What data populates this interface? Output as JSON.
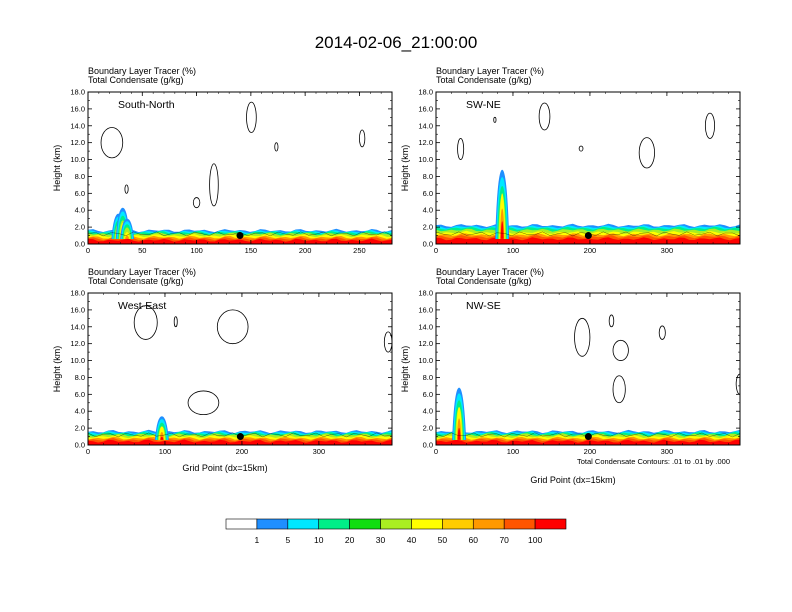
{
  "title": "2014-02-06_21:00:00",
  "subtitle_line1": "Boundary Layer Tracer   (%)",
  "subtitle_line2": "Total Condensate   (g/kg)",
  "ylabel": "Height (km)",
  "xlabel": "Grid Point (dx=15km)",
  "contour_note": "Total Condensate Contours: .01 to .01 by .000",
  "colors": {
    "background": "#ffffff",
    "contour": "#000000"
  },
  "chart_data": [
    {
      "type": "heatmap",
      "label": "South-North",
      "xlim": [
        0,
        280
      ],
      "ylim": [
        0,
        18
      ],
      "xticks": [
        "0",
        "50",
        "100",
        "150",
        "200",
        "250"
      ],
      "yticks": [
        "0.0",
        "2.0",
        "4.0",
        "6.0",
        "8.0",
        "10.0",
        "12.0",
        "14.0",
        "16.0",
        "18.0"
      ],
      "marker": {
        "x": 140,
        "y": 1.0
      },
      "plume": [
        {
          "x": 28,
          "top": 3.6,
          "core": 2.0
        },
        {
          "x": 32,
          "top": 4.3,
          "core": 2.5
        },
        {
          "x": 36,
          "top": 3.0,
          "core": 1.4
        }
      ],
      "base_top": 1.6,
      "cloud_contours": [
        {
          "x": 12,
          "y": 10.2,
          "w": 20,
          "h": 3.6
        },
        {
          "x": 34,
          "y": 6.0,
          "w": 3,
          "h": 1.0
        },
        {
          "x": 97,
          "y": 4.3,
          "w": 6,
          "h": 1.2
        },
        {
          "x": 112,
          "y": 4.5,
          "w": 8,
          "h": 5.0
        },
        {
          "x": 146,
          "y": 13.2,
          "w": 9,
          "h": 3.6
        },
        {
          "x": 172,
          "y": 11.0,
          "w": 3,
          "h": 1.0
        },
        {
          "x": 250,
          "y": 11.5,
          "w": 5,
          "h": 2.0
        }
      ]
    },
    {
      "type": "heatmap",
      "label": "SW-NE",
      "xlim": [
        0,
        395
      ],
      "ylim": [
        0,
        18
      ],
      "xticks": [
        "0",
        "100",
        "200",
        "300"
      ],
      "yticks": [
        "0.0",
        "2.0",
        "4.0",
        "6.0",
        "8.0",
        "10.0",
        "12.0",
        "14.0",
        "16.0",
        "18.0"
      ],
      "marker": {
        "x": 198,
        "y": 1.0
      },
      "plume": [
        {
          "x": 86,
          "top": 8.8,
          "core": 6.0
        }
      ],
      "base_top": 2.2,
      "cloud_contours": [
        {
          "x": 28,
          "y": 10.0,
          "w": 8,
          "h": 2.5
        },
        {
          "x": 75,
          "y": 14.4,
          "w": 3,
          "h": 0.6
        },
        {
          "x": 134,
          "y": 13.5,
          "w": 14,
          "h": 3.2
        },
        {
          "x": 186,
          "y": 11.0,
          "w": 5,
          "h": 0.6
        },
        {
          "x": 264,
          "y": 9.0,
          "w": 20,
          "h": 3.6
        },
        {
          "x": 350,
          "y": 12.5,
          "w": 12,
          "h": 3.0
        }
      ]
    },
    {
      "type": "heatmap",
      "label": "West-East",
      "xlim": [
        0,
        395
      ],
      "ylim": [
        0,
        18
      ],
      "xticks": [
        "0",
        "100",
        "200",
        "300"
      ],
      "yticks": [
        "0.0",
        "2.0",
        "4.0",
        "6.0",
        "8.0",
        "10.0",
        "12.0",
        "14.0",
        "16.0",
        "18.0"
      ],
      "marker": {
        "x": 198,
        "y": 1.0
      },
      "plume": [
        {
          "x": 96,
          "top": 3.4,
          "core": 2.2
        }
      ],
      "base_top": 1.6,
      "cloud_contours": [
        {
          "x": 60,
          "y": 12.5,
          "w": 30,
          "h": 4.0
        },
        {
          "x": 112,
          "y": 14.0,
          "w": 4,
          "h": 1.2
        },
        {
          "x": 168,
          "y": 12.0,
          "w": 40,
          "h": 4.0
        },
        {
          "x": 130,
          "y": 3.6,
          "w": 40,
          "h": 2.8
        },
        {
          "x": 385,
          "y": 11.0,
          "w": 10,
          "h": 2.4
        }
      ]
    },
    {
      "type": "heatmap",
      "label": "NW-SE",
      "xlim": [
        0,
        395
      ],
      "ylim": [
        0,
        18
      ],
      "xticks": [
        "0",
        "100",
        "200",
        "300"
      ],
      "yticks": [
        "0.0",
        "2.0",
        "4.0",
        "6.0",
        "8.0",
        "10.0",
        "12.0",
        "14.0",
        "16.0",
        "18.0"
      ],
      "marker": {
        "x": 198,
        "y": 1.0
      },
      "plume": [
        {
          "x": 30,
          "top": 6.8,
          "core": 4.5
        }
      ],
      "base_top": 1.6,
      "cloud_contours": [
        {
          "x": 180,
          "y": 10.5,
          "w": 20,
          "h": 4.5
        },
        {
          "x": 225,
          "y": 14.0,
          "w": 6,
          "h": 1.4
        },
        {
          "x": 230,
          "y": 10.0,
          "w": 20,
          "h": 2.4
        },
        {
          "x": 290,
          "y": 12.5,
          "w": 8,
          "h": 1.6
        },
        {
          "x": 390,
          "y": 6.0,
          "w": 10,
          "h": 2.4
        },
        {
          "x": 230,
          "y": 5.0,
          "w": 16,
          "h": 3.2
        }
      ]
    }
  ],
  "colorbar": {
    "labels": [
      "1",
      "5",
      "10",
      "20",
      "30",
      "40",
      "50",
      "60",
      "70",
      "100"
    ],
    "colors": [
      "#ffffff",
      "#1f8fff",
      "#00e8ff",
      "#00ee88",
      "#11dd11",
      "#aaee22",
      "#ffff00",
      "#ffcc00",
      "#ff9900",
      "#ff5500",
      "#ff0000"
    ]
  }
}
